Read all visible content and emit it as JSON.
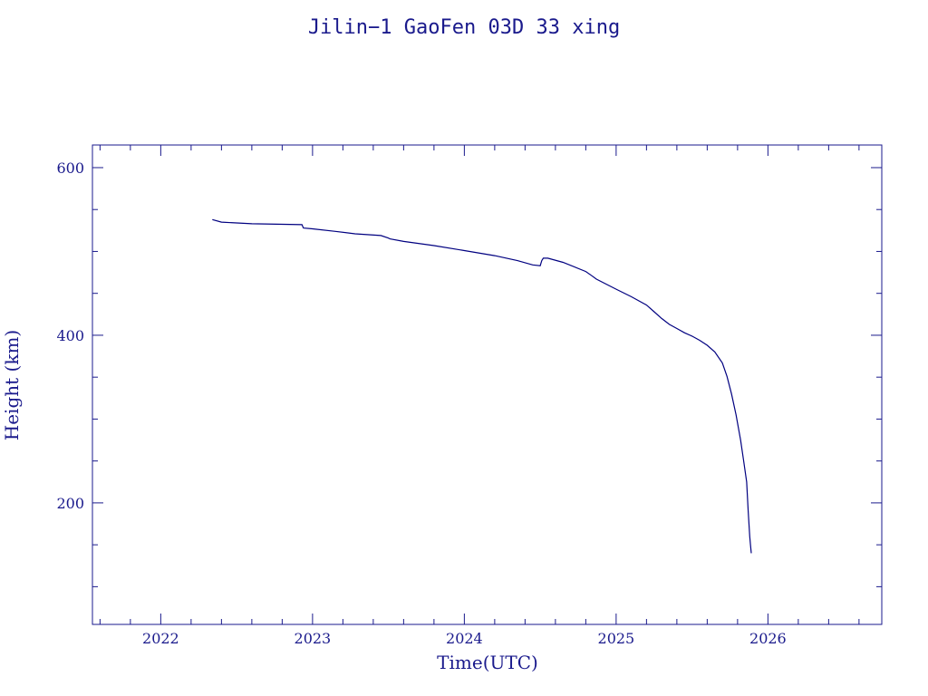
{
  "colors": {
    "ink": "#1a1a8c",
    "line": "#000080",
    "background": "#ffffff"
  },
  "chart_data": {
    "type": "line",
    "title": "Jilin−1 GaoFen 03D 33 xing",
    "xlabel": "Time(UTC)",
    "ylabel": "Height (km)",
    "xlim": [
      2021.55,
      2026.75
    ],
    "ylim": [
      55,
      627
    ],
    "x_ticks": [
      2022,
      2023,
      2024,
      2025,
      2026
    ],
    "x_tick_labels": [
      "2022",
      "2023",
      "2024",
      "2025",
      "2026"
    ],
    "y_ticks": [
      200,
      400,
      600
    ],
    "y_tick_labels": [
      "200",
      "400",
      "600"
    ],
    "grid": false,
    "legend": "none",
    "series": [
      {
        "x": [
          2022.34,
          2022.4,
          2022.6,
          2022.93,
          2022.94,
          2023.0,
          2023.15,
          2023.28,
          2023.45,
          2023.5,
          2023.51,
          2023.6,
          2023.8,
          2024.0,
          2024.2,
          2024.35,
          2024.45,
          2024.5,
          2024.51,
          2024.52,
          2024.55,
          2024.65,
          2024.8,
          2024.84,
          2024.87,
          2025.0,
          2025.1,
          2025.2,
          2025.25,
          2025.3,
          2025.35,
          2025.4,
          2025.45,
          2025.5,
          2025.55,
          2025.6,
          2025.65,
          2025.7,
          2025.73,
          2025.76,
          2025.79,
          2025.82,
          2025.84,
          2025.86,
          2025.87,
          2025.88,
          2025.885,
          2025.89
        ],
        "y": [
          538,
          535,
          533,
          532,
          528,
          527,
          524,
          521,
          519,
          516,
          515,
          512,
          507,
          501,
          495,
          489,
          484,
          483,
          489,
          492,
          492,
          487,
          476,
          471,
          467,
          455,
          446,
          436,
          428,
          420,
          413,
          408,
          403,
          399,
          394,
          388,
          380,
          367,
          351,
          330,
          305,
          275,
          250,
          225,
          190,
          160,
          150,
          140
        ]
      }
    ]
  }
}
